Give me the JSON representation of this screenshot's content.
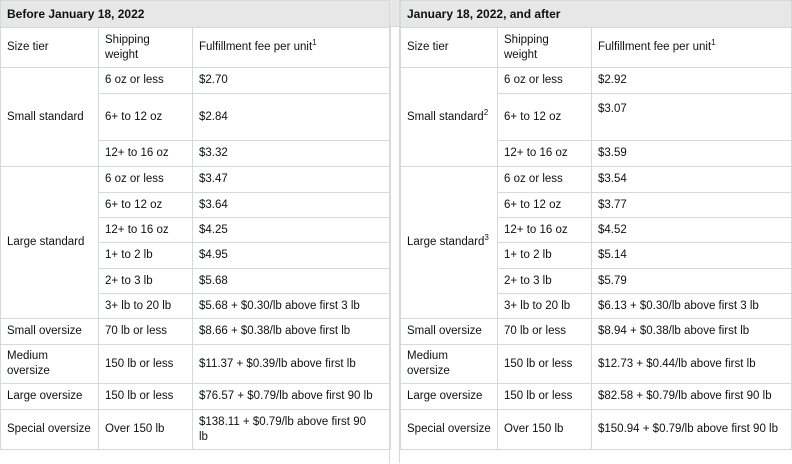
{
  "sections": [
    {
      "title": "Before January 18, 2022",
      "headers": {
        "size_tier": "Size tier",
        "weight": "Shipping weight",
        "fee": "Fulfillment fee per unit",
        "fee_sup": "1"
      },
      "groups": [
        {
          "tier": "Small standard",
          "sup": "",
          "rows": [
            [
              "6 oz or less",
              "$2.70"
            ],
            [
              "6+ to 12 oz",
              "$2.84"
            ],
            [
              "12+ to 16 oz",
              "$3.32"
            ]
          ]
        },
        {
          "tier": "Large standard",
          "sup": "",
          "rows": [
            [
              "6 oz or less",
              "$3.47"
            ],
            [
              "6+ to 12 oz",
              "$3.64"
            ],
            [
              "12+ to 16 oz",
              "$4.25"
            ],
            [
              "1+ to 2 lb",
              "$4.95"
            ],
            [
              "2+ to 3 lb",
              "$5.68"
            ],
            [
              "3+ lb to 20 lb",
              "$5.68 + $0.30/lb above first 3 lb"
            ]
          ]
        },
        {
          "tier": "Small oversize",
          "sup": "",
          "rows": [
            [
              "70 lb or less",
              "$8.66 + $0.38/lb above first lb"
            ]
          ]
        },
        {
          "tier": "Medium oversize",
          "sup": "",
          "rows": [
            [
              "150 lb or less",
              "$11.37 + $0.39/lb above first lb"
            ]
          ]
        },
        {
          "tier": "Large oversize",
          "sup": "",
          "rows": [
            [
              "150 lb or less",
              "$76.57 + $0.79/lb above first 90 lb"
            ]
          ]
        },
        {
          "tier": "Special oversize",
          "sup": "",
          "rows": [
            [
              "Over 150 lb",
              "$138.11 + $0.79/lb above first 90 lb"
            ]
          ]
        }
      ]
    },
    {
      "title": "January 18, 2022, and after",
      "headers": {
        "size_tier": "Size tier",
        "weight": "Shipping weight",
        "fee": "Fulfillment fee per unit",
        "fee_sup": "1"
      },
      "groups": [
        {
          "tier": "Small standard",
          "sup": "2",
          "rows": [
            [
              "6 oz or less",
              "$2.92"
            ],
            [
              "6+ to 12 oz",
              "$3.07"
            ],
            [
              "12+ to 16 oz",
              "$3.59"
            ]
          ]
        },
        {
          "tier": "Large standard",
          "sup": "3",
          "rows": [
            [
              "6 oz or less",
              "$3.54"
            ],
            [
              "6+ to 12 oz",
              "$3.77"
            ],
            [
              "12+ to 16 oz",
              "$4.52"
            ],
            [
              "1+ to 2 lb",
              "$5.14"
            ],
            [
              "2+ to 3 lb",
              "$5.79"
            ],
            [
              "3+ lb to 20 lb",
              "$6.13 + $0.30/lb above first 3 lb"
            ]
          ]
        },
        {
          "tier": "Small oversize",
          "sup": "",
          "rows": [
            [
              "70 lb or less",
              "$8.94 + $0.38/lb above first lb"
            ]
          ]
        },
        {
          "tier": "Medium oversize",
          "sup": "",
          "rows": [
            [
              "150 lb or less",
              "$12.73 + $0.44/lb above first lb"
            ]
          ]
        },
        {
          "tier": "Large oversize",
          "sup": "",
          "rows": [
            [
              "150 lb or less",
              "$82.58 + $0.79/lb above first 90 lb"
            ]
          ]
        },
        {
          "tier": "Special oversize",
          "sup": "",
          "rows": [
            [
              "Over 150 lb",
              "$150.94 + $0.79/lb above first 90 lb"
            ]
          ]
        }
      ]
    }
  ]
}
